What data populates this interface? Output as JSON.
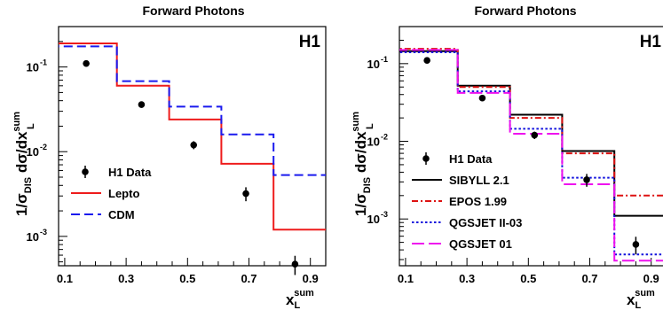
{
  "panels": [
    {
      "title": "Forward Photons",
      "tag": "H1",
      "ylabel_main": "1/σ",
      "ylabel_sub": "DIS",
      "ylabel_mid": " dσ/dx",
      "ylabel_sup": "sum",
      "ylabel_sub2": "L",
      "xlabel_main": "x",
      "xlabel_sub": "L",
      "xlabel_sup": "sum"
    },
    {
      "title": "Forward Photons",
      "tag": "H1",
      "ylabel_main": "1/σ",
      "ylabel_sub": "DIS",
      "ylabel_mid": " dσ/dx",
      "ylabel_sup": "sum",
      "ylabel_sub2": "L",
      "xlabel_main": "x",
      "xlabel_sub": "L",
      "xlabel_sup": "sum"
    }
  ],
  "chart_data": [
    {
      "type": "line",
      "title": "Forward Photons",
      "xlabel": "x_L^sum",
      "ylabel": "1/σ_DIS dσ/dx_L^sum",
      "yscale": "log",
      "xlim": [
        0.08,
        0.95
      ],
      "ylim": [
        0.00045,
        0.3
      ],
      "x_ticks": [
        "0.1",
        "0.3",
        "0.5",
        "0.7",
        "0.9"
      ],
      "y_ticks": [
        "10^-1",
        "10^-2",
        "10^-3"
      ],
      "bin_edges": [
        0.01,
        0.27,
        0.44,
        0.61,
        0.78,
        0.95
      ],
      "data": {
        "name": "H1 Data",
        "x": [
          0.17,
          0.35,
          0.52,
          0.69,
          0.85
        ],
        "y": [
          0.11,
          0.036,
          0.012,
          0.0032,
          0.00047
        ],
        "err_lo": [
          0.008,
          0.003,
          0.0013,
          0.0006,
          0.00012
        ],
        "err_hi": [
          0.008,
          0.003,
          0.0013,
          0.0006,
          0.00012
        ]
      },
      "series": [
        {
          "name": "Lepto",
          "color": "#ee1c1c",
          "dash": "solid",
          "values": [
            0.19,
            0.06,
            0.024,
            0.0072,
            0.0012
          ]
        },
        {
          "name": "CDM",
          "color": "#1a1aee",
          "dash": "dashed",
          "values": [
            0.175,
            0.068,
            0.034,
            0.016,
            0.0053
          ]
        }
      ],
      "legend_position": "bottom-left"
    },
    {
      "type": "line",
      "title": "Forward Photons",
      "xlabel": "x_L^sum",
      "ylabel": "1/σ_DIS dσ/dx_L^sum",
      "yscale": "log",
      "xlim": [
        0.08,
        0.95
      ],
      "ylim": [
        0.00025,
        0.3
      ],
      "x_ticks": [
        "0.1",
        "0.3",
        "0.5",
        "0.7",
        "0.9"
      ],
      "y_ticks": [
        "10^-1",
        "10^-2",
        "10^-3"
      ],
      "bin_edges": [
        0.01,
        0.27,
        0.44,
        0.61,
        0.78,
        0.95
      ],
      "data": {
        "name": "H1 Data",
        "x": [
          0.17,
          0.35,
          0.52,
          0.69,
          0.85
        ],
        "y": [
          0.11,
          0.036,
          0.012,
          0.0032,
          0.00047
        ],
        "err_lo": [
          0.008,
          0.003,
          0.0013,
          0.0006,
          0.00012
        ],
        "err_hi": [
          0.008,
          0.003,
          0.0013,
          0.0006,
          0.00012
        ]
      },
      "series": [
        {
          "name": "SIBYLL 2.1",
          "color": "#000000",
          "dash": "solid",
          "values": [
            0.145,
            0.052,
            0.022,
            0.0075,
            0.0011
          ]
        },
        {
          "name": "EPOS 1.99",
          "color": "#dd1111",
          "dash": "dashdot",
          "values": [
            0.155,
            0.05,
            0.02,
            0.007,
            0.002
          ]
        },
        {
          "name": "QGSJET II-03",
          "color": "#1111dd",
          "dash": "dotted",
          "values": [
            0.14,
            0.044,
            0.0145,
            0.0034,
            0.00035
          ]
        },
        {
          "name": "QGSJET 01",
          "color": "#ee11ee",
          "dash": "longdash",
          "values": [
            0.15,
            0.042,
            0.0125,
            0.0028,
            0.00029
          ]
        }
      ],
      "legend_position": "bottom-left"
    }
  ]
}
